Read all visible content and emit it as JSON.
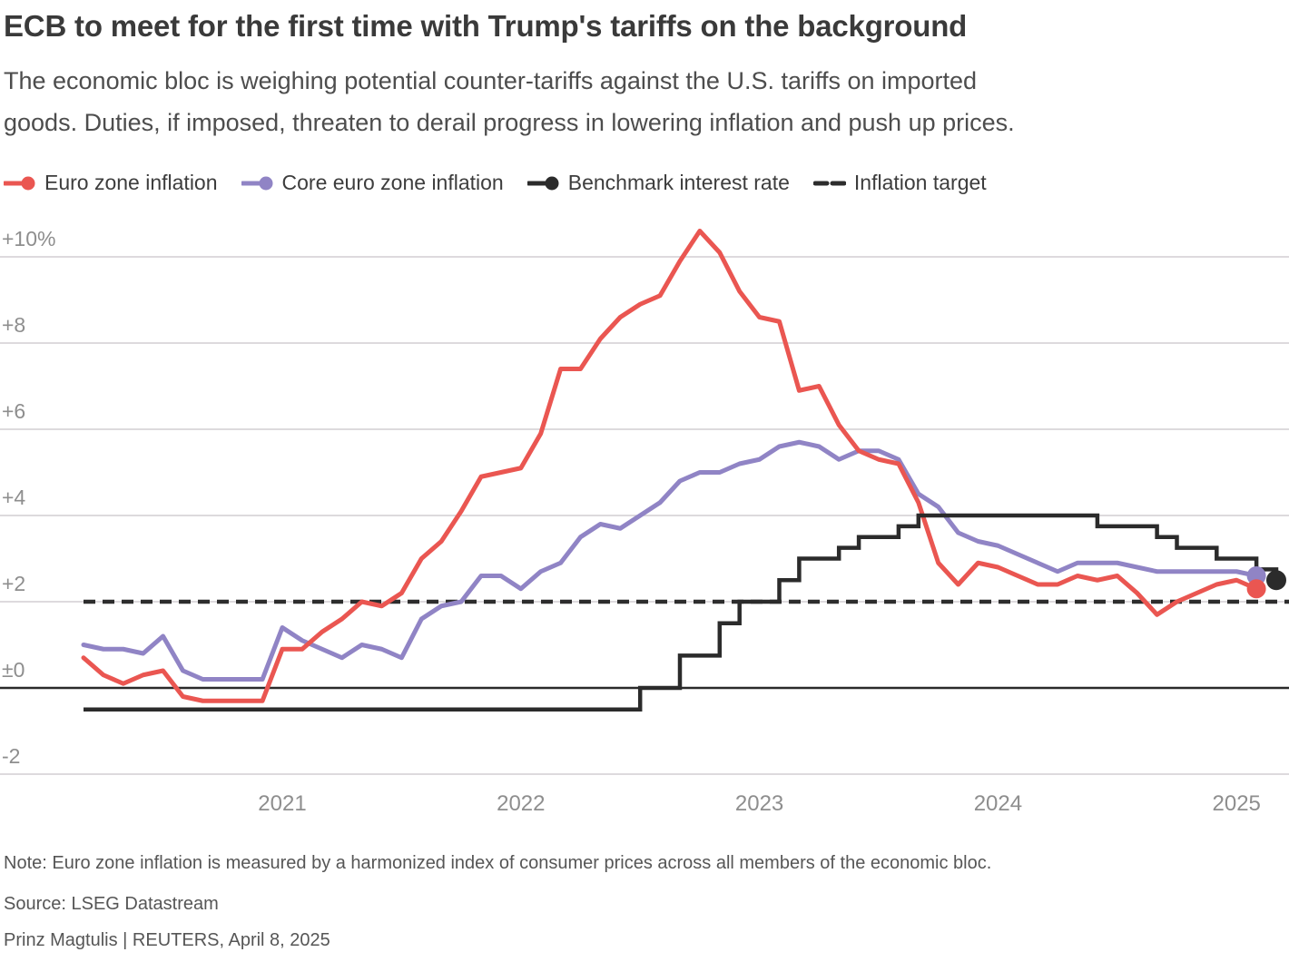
{
  "header": {
    "title": "ECB to meet for the first time with Trump's tariffs on the background",
    "subtitle_lines": [
      "The economic bloc is weighing potential counter-tariffs against the U.S. tariffs on imported",
      "goods. Duties, if imposed, threaten to derail progress in lowering inflation and push up prices."
    ]
  },
  "legend": {
    "items": [
      {
        "label": "Euro zone inflation",
        "color": "#ea5651",
        "marker": "line-dot"
      },
      {
        "label": "Core euro zone inflation",
        "color": "#9084c5",
        "marker": "line-dot"
      },
      {
        "label": "Benchmark interest rate",
        "color": "#2b2b2b",
        "marker": "line-dot"
      },
      {
        "label": "Inflation target",
        "color": "#2d2d2d",
        "marker": "dashes"
      }
    ]
  },
  "chart_data": {
    "type": "line",
    "title": "ECB to meet for the first time with Trump's tariffs on the background",
    "frequency": "monthly",
    "x_start_month": "2020-03",
    "x_axis": {
      "ticks": [
        {
          "label": "2021",
          "month_index": 10
        },
        {
          "label": "2022",
          "month_index": 22
        },
        {
          "label": "2023",
          "month_index": 34
        },
        {
          "label": "2024",
          "month_index": 46
        },
        {
          "label": "2025",
          "month_index": 58
        }
      ]
    },
    "y_axis": {
      "unit": "%",
      "range": [
        -2.6,
        10.9
      ],
      "ticks": [
        {
          "value": 10,
          "label": "+10%"
        },
        {
          "value": 8,
          "label": "+8"
        },
        {
          "value": 6,
          "label": "+6"
        },
        {
          "value": 4,
          "label": "+4"
        },
        {
          "value": 2,
          "label": "+2"
        },
        {
          "value": 0,
          "label": "±0"
        },
        {
          "value": -2,
          "label": "-2"
        }
      ]
    },
    "target_line": {
      "label": "Inflation target",
      "value": 2.0,
      "style": "dashed",
      "color": "#2d2d2d"
    },
    "grid_color": "#d2ced2",
    "zero_line_color": "#2a2a2a",
    "label_color": "#8e8e8e",
    "series": [
      {
        "name": "Core euro zone inflation",
        "color": "#9084c5",
        "style": "line",
        "end_dot": true,
        "start_month": "2020-03",
        "end_month": "2025-02",
        "values": [
          1.0,
          0.9,
          0.9,
          0.8,
          1.2,
          0.4,
          0.2,
          0.2,
          0.2,
          0.2,
          1.4,
          1.1,
          0.9,
          0.7,
          1.0,
          0.9,
          0.7,
          1.6,
          1.9,
          2.0,
          2.6,
          2.6,
          2.3,
          2.7,
          2.9,
          3.5,
          3.8,
          3.7,
          4.0,
          4.3,
          4.8,
          5.0,
          5.0,
          5.2,
          5.3,
          5.6,
          5.7,
          5.6,
          5.3,
          5.5,
          5.5,
          5.3,
          4.5,
          4.2,
          3.6,
          3.4,
          3.3,
          3.1,
          2.9,
          2.7,
          2.9,
          2.9,
          2.9,
          2.8,
          2.7,
          2.7,
          2.7,
          2.7,
          2.7,
          2.6
        ]
      },
      {
        "name": "Euro zone inflation",
        "color": "#ea5651",
        "style": "line",
        "end_dot": true,
        "start_month": "2020-03",
        "end_month": "2025-02",
        "values": [
          0.7,
          0.3,
          0.1,
          0.3,
          0.4,
          -0.2,
          -0.3,
          -0.3,
          -0.3,
          -0.3,
          0.9,
          0.9,
          1.3,
          1.6,
          2.0,
          1.9,
          2.2,
          3.0,
          3.4,
          4.1,
          4.9,
          5.0,
          5.1,
          5.9,
          7.4,
          7.4,
          8.1,
          8.6,
          8.9,
          9.1,
          9.9,
          10.6,
          10.1,
          9.2,
          8.6,
          8.5,
          6.9,
          7.0,
          6.1,
          5.5,
          5.3,
          5.2,
          4.3,
          2.9,
          2.4,
          2.9,
          2.8,
          2.6,
          2.4,
          2.4,
          2.6,
          2.5,
          2.6,
          2.2,
          1.7,
          2.0,
          2.2,
          2.4,
          2.5,
          2.3
        ]
      },
      {
        "name": "Benchmark interest rate",
        "color": "#2b2b2b",
        "style": "step",
        "end_dot": true,
        "start_month": "2020-03",
        "end_month": "2025-03",
        "values": [
          -0.5,
          -0.5,
          -0.5,
          -0.5,
          -0.5,
          -0.5,
          -0.5,
          -0.5,
          -0.5,
          -0.5,
          -0.5,
          -0.5,
          -0.5,
          -0.5,
          -0.5,
          -0.5,
          -0.5,
          -0.5,
          -0.5,
          -0.5,
          -0.5,
          -0.5,
          -0.5,
          -0.5,
          -0.5,
          -0.5,
          -0.5,
          -0.5,
          0.0,
          0.0,
          0.75,
          0.75,
          1.5,
          2.0,
          2.0,
          2.5,
          3.0,
          3.0,
          3.25,
          3.5,
          3.5,
          3.75,
          4.0,
          4.0,
          4.0,
          4.0,
          4.0,
          4.0,
          4.0,
          4.0,
          4.0,
          3.75,
          3.75,
          3.75,
          3.5,
          3.25,
          3.25,
          3.0,
          3.0,
          2.75,
          2.5
        ]
      }
    ]
  },
  "footer": {
    "note": "Note: Euro zone inflation is measured by a harmonized index of consumer prices across all members of the economic bloc.",
    "source": "Source: LSEG Datastream",
    "credit": "Prinz Magtulis | REUTERS, April 8, 2025"
  }
}
